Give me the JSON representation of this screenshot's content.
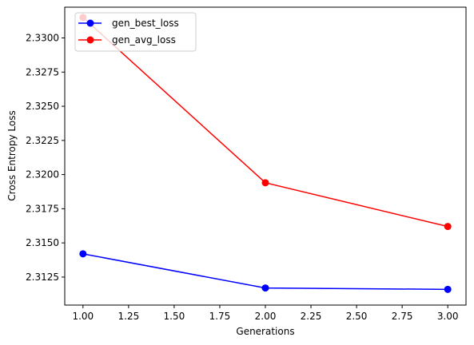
{
  "chart_data": {
    "type": "line",
    "title": "",
    "xlabel": "Generations",
    "ylabel": "Cross Entropy Loss",
    "x": [
      1.0,
      2.0,
      3.0
    ],
    "xlim": [
      0.9,
      3.1
    ],
    "ylim": [
      2.31045,
      2.33225
    ],
    "xticks": [
      1.0,
      1.25,
      1.5,
      1.75,
      2.0,
      2.25,
      2.5,
      2.75,
      3.0
    ],
    "xtick_labels": [
      "1.00",
      "1.25",
      "1.50",
      "1.75",
      "2.00",
      "2.25",
      "2.50",
      "2.75",
      "3.00"
    ],
    "yticks": [
      2.3125,
      2.315,
      2.3175,
      2.32,
      2.3225,
      2.325,
      2.3275,
      2.33
    ],
    "ytick_labels": [
      "2.3125",
      "2.3150",
      "2.3175",
      "2.3200",
      "2.3225",
      "2.3250",
      "2.3275",
      "2.3300"
    ],
    "grid": false,
    "legend_position": "top-left",
    "series": [
      {
        "name": "gen_best_loss",
        "color": "#0000ff",
        "marker": "circle",
        "values": [
          2.3142,
          2.3117,
          2.3116
        ]
      },
      {
        "name": "gen_avg_loss",
        "color": "#ff0000",
        "marker": "circle",
        "values": [
          2.3315,
          2.3194,
          2.3162
        ]
      }
    ]
  }
}
